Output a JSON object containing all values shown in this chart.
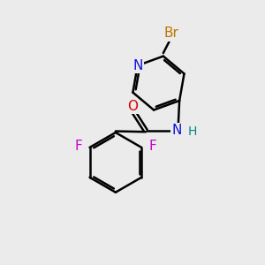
{
  "background_color": "#ebebeb",
  "bond_color": "#000000",
  "bond_width": 1.8,
  "atom_colors": {
    "Br": "#b87800",
    "N_pyridine": "#1010dd",
    "N_amide": "#1010dd",
    "O": "#dd0000",
    "F": "#cc00cc",
    "H": "#008888",
    "C": "#000000"
  },
  "font_size": 11,
  "font_size_H": 10
}
